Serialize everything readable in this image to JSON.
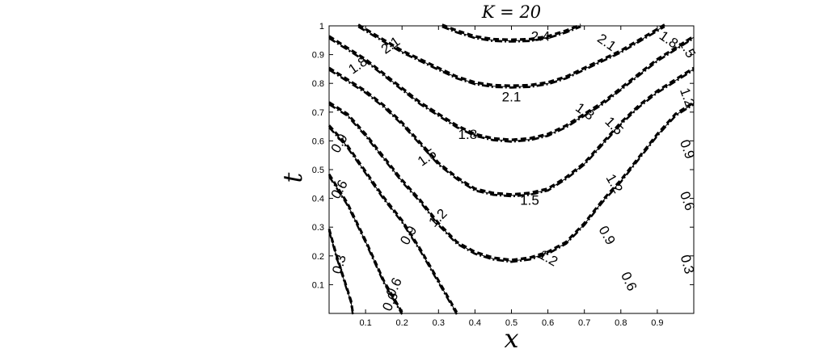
{
  "chart_data": {
    "type": "contour",
    "title": "K = 20",
    "xlabel": "x",
    "ylabel": "t",
    "xlim": [
      0,
      1
    ],
    "ylim": [
      0,
      1
    ],
    "xticks": [
      "0.1",
      "0.2",
      "0.3",
      "0.4",
      "0.5",
      "0.6",
      "0.7",
      "0.8",
      "0.9"
    ],
    "yticks": [
      "0.1",
      "0.2",
      "0.3",
      "0.4",
      "0.5",
      "0.6",
      "0.7",
      "0.8",
      "0.9",
      "1"
    ],
    "grid": false,
    "series": [
      {
        "style": "solid-thin"
      },
      {
        "style": "dashed-thick"
      },
      {
        "style": "dash-dot-thick"
      }
    ],
    "contours": [
      {
        "level": "0.3",
        "points": [
          [
            0.0,
            0.29
          ],
          [
            0.02,
            0.2
          ],
          [
            0.04,
            0.12
          ],
          [
            0.06,
            0.04
          ],
          [
            0.065,
            0.0
          ]
        ]
      },
      {
        "level": "0.6",
        "points": [
          [
            0.0,
            0.48
          ],
          [
            0.05,
            0.38
          ],
          [
            0.1,
            0.25
          ],
          [
            0.15,
            0.11
          ],
          [
            0.2,
            0.0
          ]
        ]
      },
      {
        "level": "0.9",
        "points": [
          [
            0.0,
            0.65
          ],
          [
            0.05,
            0.58
          ],
          [
            0.1,
            0.49
          ],
          [
            0.15,
            0.4
          ],
          [
            0.2,
            0.32
          ],
          [
            0.25,
            0.22
          ],
          [
            0.3,
            0.11
          ],
          [
            0.35,
            0.0
          ]
        ]
      },
      {
        "level": "1.2",
        "points": [
          [
            0.0,
            0.73
          ],
          [
            0.05,
            0.69
          ],
          [
            0.1,
            0.62
          ],
          [
            0.15,
            0.54
          ],
          [
            0.2,
            0.46
          ],
          [
            0.25,
            0.39
          ],
          [
            0.3,
            0.31
          ],
          [
            0.35,
            0.245
          ],
          [
            0.4,
            0.21
          ],
          [
            0.45,
            0.19
          ],
          [
            0.5,
            0.182
          ],
          [
            0.55,
            0.19
          ],
          [
            0.6,
            0.21
          ],
          [
            0.65,
            0.245
          ],
          [
            0.7,
            0.31
          ],
          [
            0.75,
            0.39
          ],
          [
            0.8,
            0.46
          ],
          [
            0.85,
            0.54
          ],
          [
            0.9,
            0.62
          ],
          [
            0.95,
            0.69
          ],
          [
            1.0,
            0.73
          ]
        ]
      },
      {
        "level": "1.5",
        "points": [
          [
            0.0,
            0.85
          ],
          [
            0.05,
            0.81
          ],
          [
            0.1,
            0.77
          ],
          [
            0.15,
            0.72
          ],
          [
            0.2,
            0.66
          ],
          [
            0.25,
            0.59
          ],
          [
            0.3,
            0.52
          ],
          [
            0.35,
            0.47
          ],
          [
            0.4,
            0.43
          ],
          [
            0.45,
            0.415
          ],
          [
            0.5,
            0.41
          ],
          [
            0.55,
            0.415
          ],
          [
            0.6,
            0.43
          ],
          [
            0.65,
            0.47
          ],
          [
            0.7,
            0.52
          ],
          [
            0.75,
            0.59
          ],
          [
            0.8,
            0.66
          ],
          [
            0.85,
            0.72
          ],
          [
            0.9,
            0.77
          ],
          [
            0.95,
            0.81
          ],
          [
            1.0,
            0.85
          ]
        ]
      },
      {
        "level": "1.8",
        "points": [
          [
            0.0,
            0.96
          ],
          [
            0.05,
            0.92
          ],
          [
            0.1,
            0.88
          ],
          [
            0.15,
            0.83
          ],
          [
            0.2,
            0.78
          ],
          [
            0.25,
            0.73
          ],
          [
            0.3,
            0.69
          ],
          [
            0.35,
            0.65
          ],
          [
            0.4,
            0.62
          ],
          [
            0.45,
            0.605
          ],
          [
            0.5,
            0.6
          ],
          [
            0.55,
            0.605
          ],
          [
            0.6,
            0.62
          ],
          [
            0.65,
            0.65
          ],
          [
            0.7,
            0.69
          ],
          [
            0.75,
            0.73
          ],
          [
            0.8,
            0.78
          ],
          [
            0.85,
            0.83
          ],
          [
            0.9,
            0.88
          ],
          [
            0.95,
            0.92
          ],
          [
            1.0,
            0.96
          ]
        ]
      },
      {
        "level": "2.1",
        "points": [
          [
            0.08,
            1.0
          ],
          [
            0.12,
            0.97
          ],
          [
            0.16,
            0.94
          ],
          [
            0.2,
            0.91
          ],
          [
            0.25,
            0.88
          ],
          [
            0.3,
            0.85
          ],
          [
            0.35,
            0.82
          ],
          [
            0.4,
            0.8
          ],
          [
            0.45,
            0.79
          ],
          [
            0.5,
            0.788
          ],
          [
            0.55,
            0.79
          ],
          [
            0.6,
            0.8
          ],
          [
            0.65,
            0.82
          ],
          [
            0.7,
            0.85
          ],
          [
            0.75,
            0.88
          ],
          [
            0.8,
            0.91
          ],
          [
            0.84,
            0.94
          ],
          [
            0.88,
            0.97
          ],
          [
            0.92,
            1.0
          ]
        ]
      },
      {
        "level": "2.4",
        "points": [
          [
            0.31,
            1.0
          ],
          [
            0.35,
            0.98
          ],
          [
            0.4,
            0.96
          ],
          [
            0.45,
            0.95
          ],
          [
            0.5,
            0.948
          ],
          [
            0.55,
            0.95
          ],
          [
            0.6,
            0.96
          ],
          [
            0.65,
            0.98
          ],
          [
            0.69,
            1.0
          ]
        ]
      }
    ],
    "labels": [
      {
        "text": "0.3",
        "x": 0.03,
        "y": 0.17,
        "rot": -75
      },
      {
        "text": "0.6",
        "x": 0.17,
        "y": 0.04,
        "rot": -65
      },
      {
        "text": "0.9",
        "x": 0.22,
        "y": 0.27,
        "rot": -60
      },
      {
        "text": "1.2",
        "x": 0.3,
        "y": 0.33,
        "rot": -45
      },
      {
        "text": "1.5",
        "x": 0.27,
        "y": 0.54,
        "rot": -35
      },
      {
        "text": "1.8",
        "x": 0.08,
        "y": 0.86,
        "rot": -35
      },
      {
        "text": "2.1",
        "x": 0.17,
        "y": 0.93,
        "rot": -35
      },
      {
        "text": "2.4",
        "x": 0.58,
        "y": 0.96,
        "rot": 0
      },
      {
        "text": "2.1",
        "x": 0.5,
        "y": 0.75,
        "rot": 0
      },
      {
        "text": "1.8",
        "x": 0.38,
        "y": 0.62,
        "rot": 0
      },
      {
        "text": "1.5",
        "x": 0.55,
        "y": 0.39,
        "rot": 0
      },
      {
        "text": "1.2",
        "x": 0.6,
        "y": 0.19,
        "rot": 30
      },
      {
        "text": "0.9",
        "x": 0.03,
        "y": 0.59,
        "rot": -60
      },
      {
        "text": "0.6",
        "x": 0.03,
        "y": 0.43,
        "rot": -60
      },
      {
        "text": "0.6",
        "x": 0.18,
        "y": 0.09,
        "rot": -65
      },
      {
        "text": "2.1",
        "x": 0.76,
        "y": 0.94,
        "rot": 35
      },
      {
        "text": "1.8",
        "x": 0.7,
        "y": 0.7,
        "rot": 35
      },
      {
        "text": "1.5",
        "x": 0.78,
        "y": 0.65,
        "rot": 45
      },
      {
        "text": "1.2",
        "x": 0.78,
        "y": 0.45,
        "rot": 60
      },
      {
        "text": "0.9",
        "x": 0.76,
        "y": 0.27,
        "rot": 60
      },
      {
        "text": "0.6",
        "x": 0.82,
        "y": 0.11,
        "rot": 65
      },
      {
        "text": "1.8",
        "x": 0.93,
        "y": 0.95,
        "rot": 35
      },
      {
        "text": "1.5",
        "x": 0.98,
        "y": 0.92,
        "rot": 60
      },
      {
        "text": "1.2",
        "x": 0.98,
        "y": 0.75,
        "rot": 70
      },
      {
        "text": "0.9",
        "x": 0.98,
        "y": 0.57,
        "rot": 70
      },
      {
        "text": "0.6",
        "x": 0.98,
        "y": 0.39,
        "rot": 70
      },
      {
        "text": "0.3",
        "x": 0.98,
        "y": 0.17,
        "rot": 75
      }
    ]
  }
}
